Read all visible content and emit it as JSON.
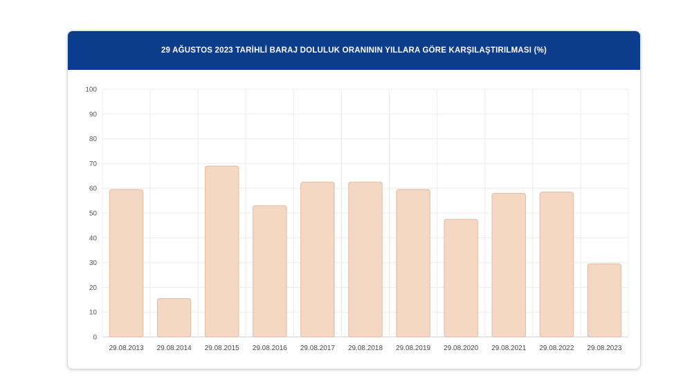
{
  "header": {
    "title": "29 AĞUSTOS 2023 TARİHLİ BARAJ DOLULUK ORANININ YILLARA GÖRE KARŞILAŞTIRILMASI (%)"
  },
  "colors": {
    "header_background": "#0c3c8c",
    "bar_fill": "#f4d8c4",
    "bar_stroke": "#e2b99e",
    "grid": "#ececec"
  },
  "chart_data": {
    "type": "bar",
    "title": "29 AĞUSTOS 2023 TARİHLİ BARAJ DOLULUK ORANININ YILLARA GÖRE KARŞILAŞTIRILMASI (%)",
    "xlabel": "",
    "ylabel": "",
    "categories": [
      "29.08.2013",
      "29.08.2014",
      "29.08.2015",
      "29.08.2016",
      "29.08.2017",
      "29.08.2018",
      "29.08.2019",
      "29.08.2020",
      "29.08.2021",
      "29.08.2022",
      "29.08.2023"
    ],
    "values": [
      59.5,
      15.5,
      69,
      53,
      62.5,
      62.5,
      59.5,
      47.5,
      58,
      58.5,
      29.5
    ],
    "ylim": [
      0,
      100
    ],
    "yticks": [
      0,
      10,
      20,
      30,
      40,
      50,
      60,
      70,
      80,
      90,
      100
    ],
    "grid": true,
    "legend": "none"
  }
}
